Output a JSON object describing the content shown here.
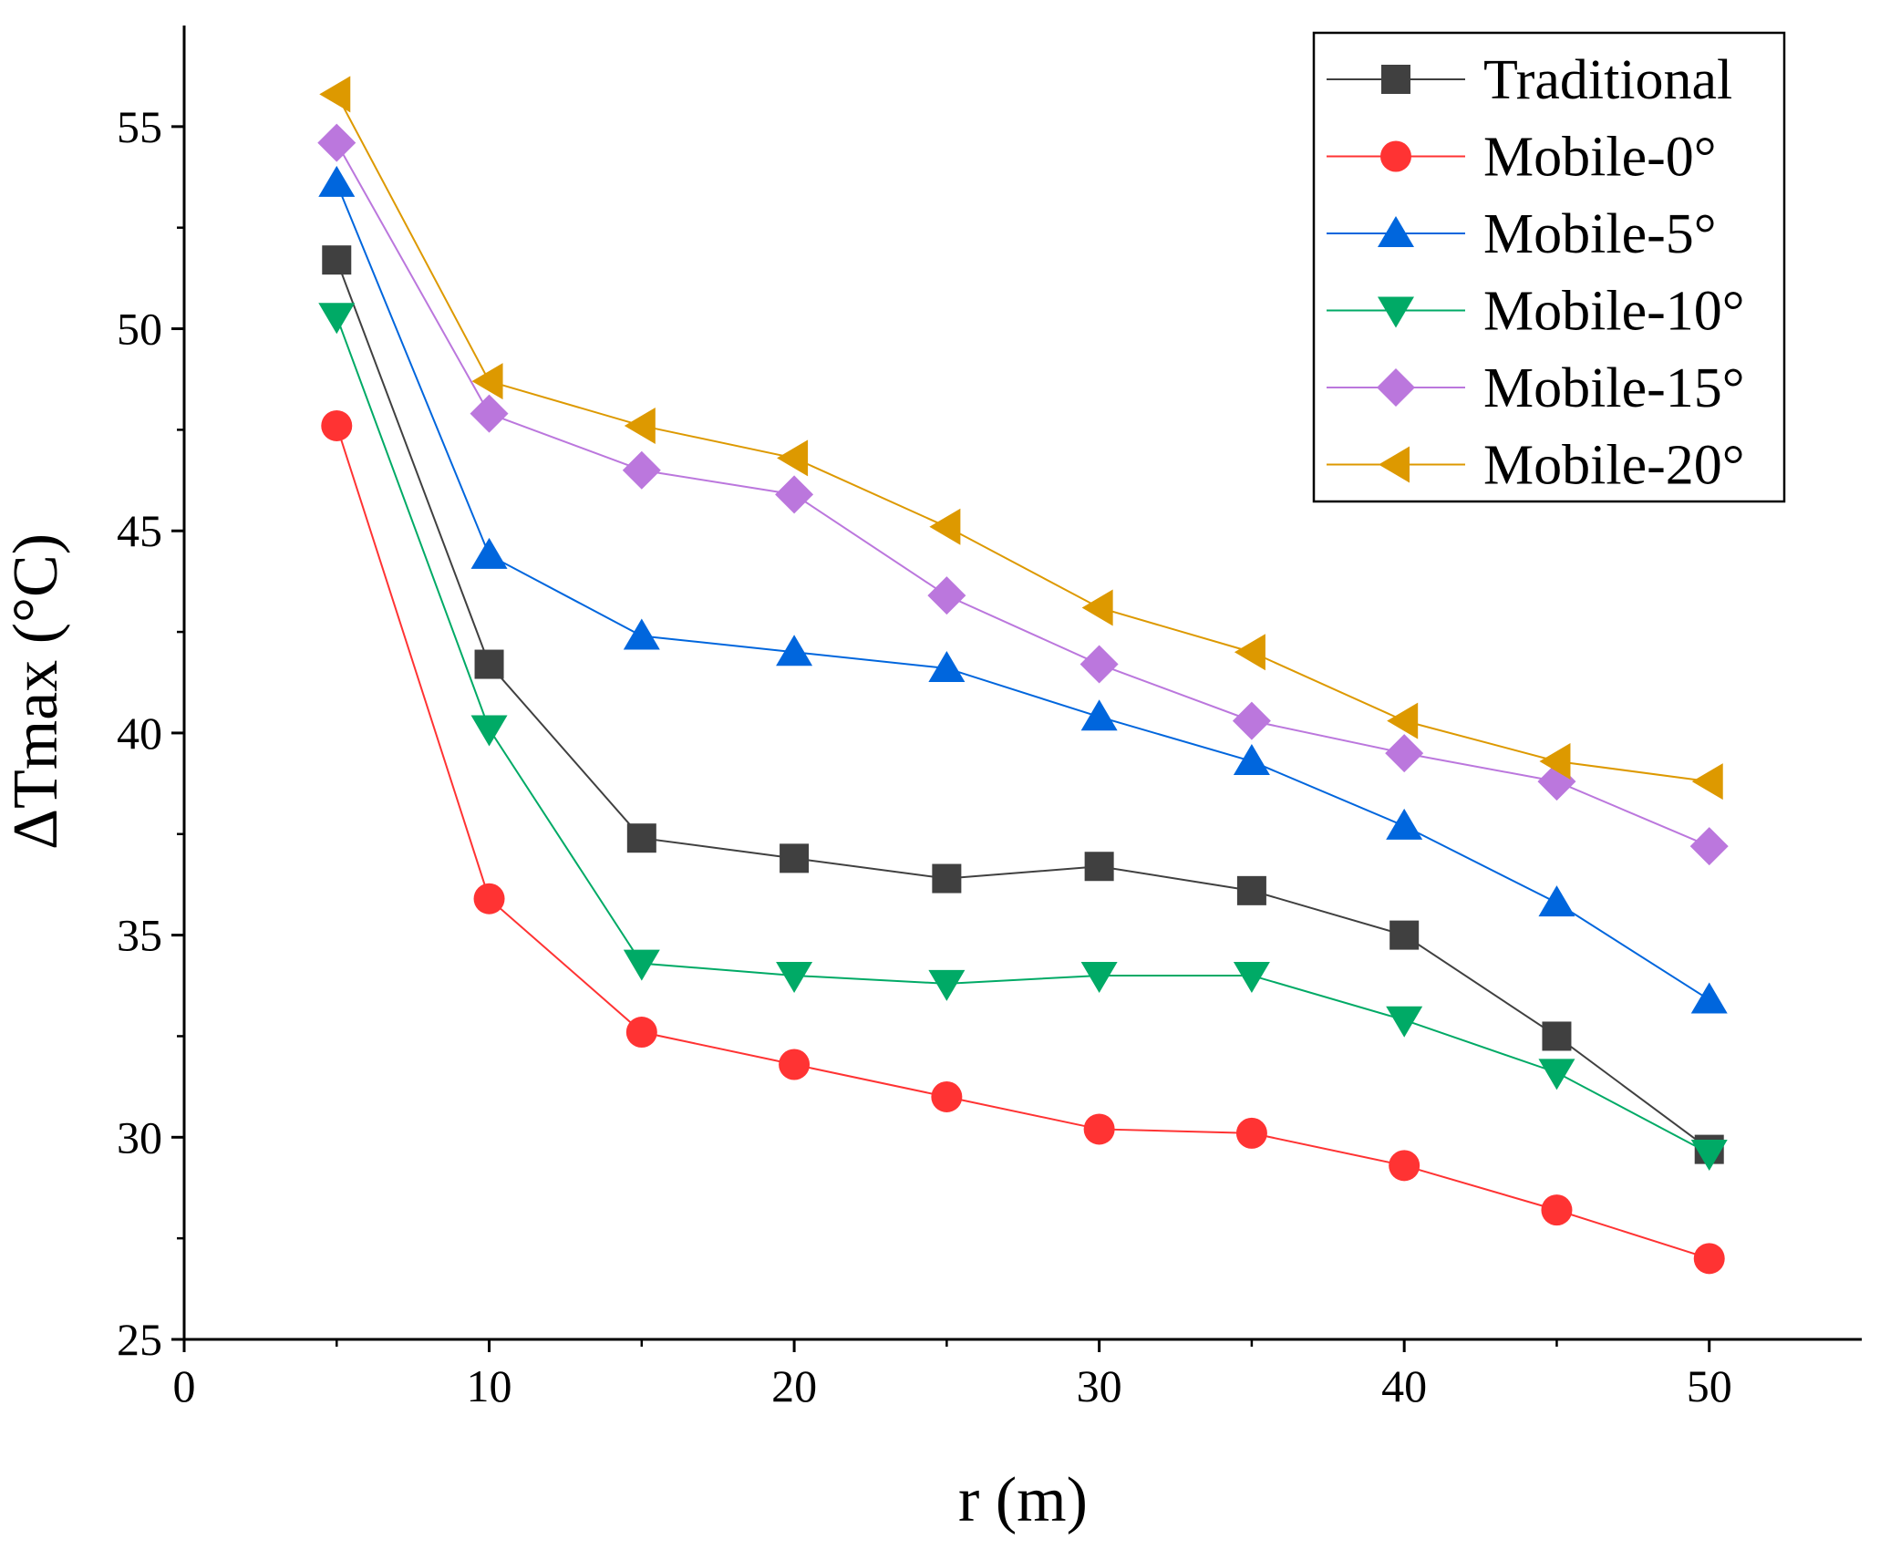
{
  "chart_data": {
    "type": "line",
    "title": "",
    "xlabel": "r (m)",
    "ylabel": "ΔTmax (°C)",
    "xlim": [
      0,
      55
    ],
    "ylim": [
      25,
      57.5
    ],
    "xticks": [
      0,
      10,
      20,
      30,
      40,
      50
    ],
    "yticks": [
      25,
      30,
      35,
      40,
      45,
      50,
      55
    ],
    "xtick_labels": [
      "0",
      "10",
      "20",
      "30",
      "40",
      "50"
    ],
    "ytick_labels": [
      "25",
      "30",
      "35",
      "40",
      "45",
      "50",
      "55"
    ],
    "x": [
      5,
      10,
      15,
      20,
      25,
      30,
      35,
      40,
      45,
      50
    ],
    "grid": false,
    "legend_position": "top-right",
    "series": [
      {
        "name": "Traditional",
        "color": "#404040",
        "marker": "square",
        "values": [
          51.7,
          41.7,
          37.4,
          36.9,
          36.4,
          36.7,
          36.1,
          35.0,
          32.5,
          29.7
        ]
      },
      {
        "name": "Mobile-0°",
        "color": "#ff3333",
        "marker": "circle",
        "values": [
          47.6,
          35.9,
          32.6,
          31.8,
          31.0,
          30.2,
          30.1,
          29.3,
          28.2,
          27.0
        ]
      },
      {
        "name": "Mobile-5°",
        "color": "#0066dd",
        "marker": "triangle-up",
        "values": [
          53.6,
          44.4,
          42.4,
          42.0,
          41.6,
          40.4,
          39.3,
          37.7,
          35.8,
          33.4
        ]
      },
      {
        "name": "Mobile-10°",
        "color": "#00aa66",
        "marker": "triangle-down",
        "values": [
          50.3,
          40.1,
          34.3,
          34.0,
          33.8,
          34.0,
          34.0,
          32.9,
          31.6,
          29.6
        ]
      },
      {
        "name": "Mobile-15°",
        "color": "#bb77dd",
        "marker": "diamond",
        "values": [
          54.6,
          47.9,
          46.5,
          45.9,
          43.4,
          41.7,
          40.3,
          39.5,
          38.8,
          37.2
        ]
      },
      {
        "name": "Mobile-20°",
        "color": "#dd9900",
        "marker": "triangle-left",
        "values": [
          55.8,
          48.7,
          47.6,
          46.8,
          45.1,
          43.1,
          42.0,
          40.3,
          39.3,
          38.8
        ]
      }
    ]
  }
}
